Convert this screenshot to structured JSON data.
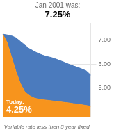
{
  "chart_data": {
    "type": "area",
    "title": "Jan 2001 was:",
    "subtitle": "7.25%",
    "xlabel": "Variable rate less then 5 year fixed",
    "annotations": [
      "Today:",
      "4.25%"
    ],
    "categories": [
      null,
      null,
      null,
      null,
      null,
      null,
      null,
      null,
      null,
      null,
      null,
      null,
      null,
      null,
      null,
      null,
      null,
      null,
      null,
      null,
      null
    ],
    "series": [
      {
        "color": "#F7941D",
        "values": [
          7.25,
          6.9,
          6.3,
          5.7,
          5.2,
          4.85,
          4.7,
          4.6,
          4.55,
          4.52,
          4.5,
          4.48,
          4.45,
          4.43,
          4.41,
          4.39,
          4.36,
          4.34,
          4.31,
          4.28,
          4.25
        ]
      },
      {
        "color": "#4B7BBE",
        "values": [
          7.25,
          7.22,
          7.18,
          7.1,
          6.95,
          6.8,
          6.65,
          6.55,
          6.45,
          6.38,
          6.32,
          6.28,
          6.22,
          6.15,
          6.08,
          6.0,
          5.93,
          5.87,
          5.8,
          5.72,
          5.55
        ]
      }
    ],
    "ylim": [
      3.8,
      7.7
    ],
    "yticks": [
      {
        "value": 5.0,
        "label": "5.00"
      },
      {
        "value": 6.0,
        "label": "6.00"
      },
      {
        "value": 7.0,
        "label": "7.00"
      }
    ],
    "grid": true,
    "tick_labels": "y"
  }
}
